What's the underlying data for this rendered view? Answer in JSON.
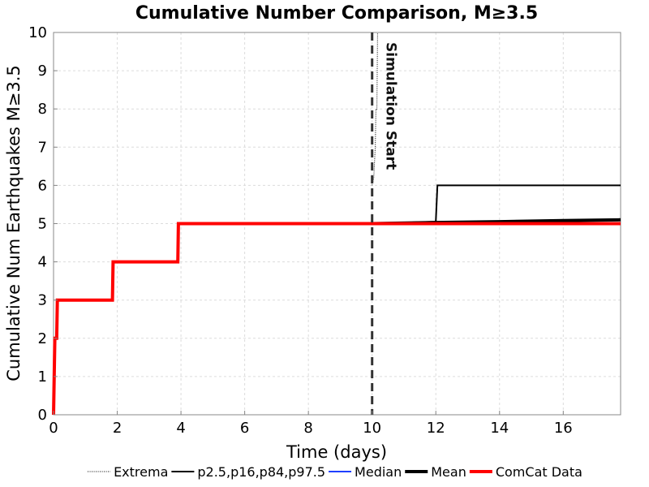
{
  "chart_data": {
    "type": "line",
    "title": "Cumulative Number Comparison, M≥3.5",
    "xlabel": "Time (days)",
    "ylabel": "Cumulative Num Earthquakes M≥3.5",
    "xlim": [
      0,
      17.8
    ],
    "ylim": [
      0,
      10
    ],
    "xticks": [
      "0",
      "2",
      "4",
      "6",
      "8",
      "10",
      "12",
      "14",
      "16"
    ],
    "yticks": [
      "0",
      "1",
      "2",
      "3",
      "4",
      "5",
      "6",
      "7",
      "8",
      "9",
      "10"
    ],
    "grid": true,
    "legend_position": "bottom",
    "annotation": {
      "text": "Simulation Start",
      "x": 10
    },
    "series": [
      {
        "name": "Extrema",
        "style": "dotted",
        "color": "#000000",
        "points": [
          [
            10,
            6
          ],
          [
            10.05,
            6.2
          ],
          [
            10.1,
            7
          ],
          [
            10.12,
            8
          ],
          [
            10.15,
            8
          ],
          [
            10.17,
            10
          ]
        ]
      },
      {
        "name": "p2.5,p16,p84,p97.5",
        "style": "thin",
        "color": "#000000",
        "points": [
          [
            10,
            5
          ],
          [
            12.0,
            5.05
          ],
          [
            12.05,
            6
          ],
          [
            17.8,
            6
          ]
        ]
      },
      {
        "name": "Median",
        "style": "solid",
        "color": "#1f3fff",
        "points": [
          [
            10,
            5
          ],
          [
            17.8,
            5
          ]
        ]
      },
      {
        "name": "Mean",
        "style": "thick",
        "color": "#000000",
        "points": [
          [
            10,
            5
          ],
          [
            12,
            5.03
          ],
          [
            14,
            5.05
          ],
          [
            16,
            5.08
          ],
          [
            17.8,
            5.1
          ]
        ]
      },
      {
        "name": "ComCat Data",
        "style": "thick",
        "color": "#ff0000",
        "points": [
          [
            0,
            0
          ],
          [
            0.02,
            1
          ],
          [
            0.04,
            2
          ],
          [
            0.1,
            2
          ],
          [
            0.12,
            3
          ],
          [
            1.85,
            3
          ],
          [
            1.87,
            4
          ],
          [
            3.9,
            4
          ],
          [
            3.92,
            5
          ],
          [
            17.8,
            5
          ]
        ]
      }
    ]
  }
}
